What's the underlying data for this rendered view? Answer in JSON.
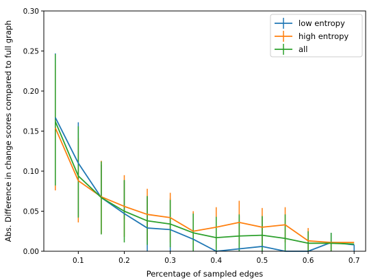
{
  "chart_data": {
    "type": "line",
    "xlabel": "Percentage of sampled edges",
    "ylabel": "Abs. Difference in change scores compared to full graph",
    "xlim": [
      0.025,
      0.725
    ],
    "ylim": [
      0.0,
      0.3
    ],
    "xticks": [
      "0.1",
      "0.2",
      "0.3",
      "0.4",
      "0.5",
      "0.6",
      "0.7"
    ],
    "xtick_values": [
      0.1,
      0.2,
      0.3,
      0.4,
      0.5,
      0.6,
      0.7
    ],
    "yticks": [
      "0.00",
      "0.05",
      "0.10",
      "0.15",
      "0.20",
      "0.25",
      "0.30"
    ],
    "ytick_values": [
      0.0,
      0.05,
      0.1,
      0.15,
      0.2,
      0.25,
      0.3
    ],
    "legend_position": "top-right",
    "grid": false,
    "x": [
      0.05,
      0.1,
      0.15,
      0.2,
      0.25,
      0.3,
      0.35,
      0.4,
      0.45,
      0.5,
      0.55,
      0.6,
      0.65,
      0.7
    ],
    "series": [
      {
        "name": "low entropy",
        "color": "#1f77b4",
        "values": [
          0.167,
          0.11,
          0.067,
          0.047,
          0.029,
          0.027,
          0.015,
          0.0,
          0.003,
          0.006,
          0.0,
          0.0,
          0.011,
          0.008
        ],
        "err_low": [
          0.083,
          0.043,
          0.067,
          0.04,
          0.0,
          0.0,
          0.0,
          0.0,
          0.0,
          0.0,
          0.0,
          0.0,
          0.0,
          0.0
        ],
        "err_high": [
          0.247,
          0.161,
          0.108,
          0.088,
          0.068,
          0.066,
          0.048,
          0.0,
          0.044,
          0.043,
          0.0,
          0.0,
          0.023,
          0.008
        ]
      },
      {
        "name": "high entropy",
        "color": "#ff7f0e",
        "values": [
          0.154,
          0.088,
          0.068,
          0.056,
          0.046,
          0.042,
          0.025,
          0.03,
          0.036,
          0.03,
          0.033,
          0.013,
          0.011,
          0.011
        ],
        "err_low": [
          0.076,
          0.036,
          0.022,
          0.018,
          0.014,
          0.011,
          0.002,
          0.004,
          0.009,
          0.006,
          0.011,
          0.0,
          0.0,
          0.011
        ],
        "err_high": [
          0.233,
          0.141,
          0.113,
          0.095,
          0.078,
          0.073,
          0.05,
          0.055,
          0.063,
          0.054,
          0.055,
          0.029,
          0.011,
          0.011
        ]
      },
      {
        "name": "all",
        "color": "#2ca02c",
        "values": [
          0.162,
          0.094,
          0.067,
          0.05,
          0.038,
          0.034,
          0.023,
          0.017,
          0.019,
          0.02,
          0.016,
          0.01,
          0.01,
          0.009
        ],
        "err_low": [
          0.082,
          0.042,
          0.021,
          0.011,
          0.008,
          0.005,
          0.0,
          0.0,
          0.0,
          0.0,
          0.0,
          0.0,
          0.0,
          0.009
        ],
        "err_high": [
          0.246,
          0.156,
          0.112,
          0.089,
          0.069,
          0.064,
          0.047,
          0.043,
          0.046,
          0.044,
          0.046,
          0.025,
          0.023,
          0.009
        ]
      }
    ]
  }
}
